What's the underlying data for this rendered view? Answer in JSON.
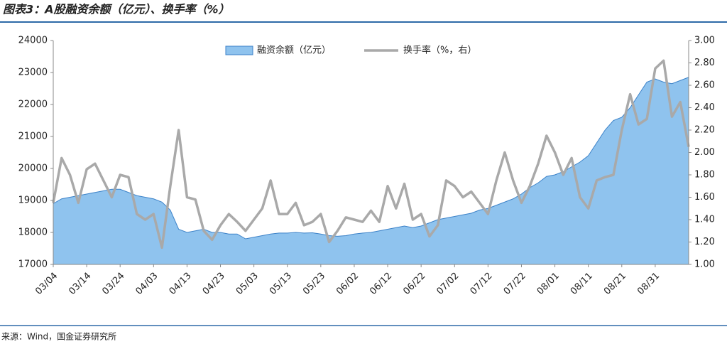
{
  "chart_data": {
    "type": "area_line",
    "title": "图表3：A股融资余额（亿元）、换手率（%）",
    "source": "来源：Wind，国金证券研究所",
    "categories": [
      "03/04",
      null,
      null,
      null,
      "03/14",
      null,
      null,
      null,
      "03/24",
      null,
      null,
      null,
      "04/03",
      null,
      null,
      null,
      "04/13",
      null,
      null,
      null,
      "04/23",
      null,
      null,
      null,
      "05/03",
      null,
      null,
      null,
      "05/13",
      null,
      null,
      null,
      "05/23",
      null,
      null,
      null,
      "06/02",
      null,
      null,
      null,
      "06/12",
      null,
      null,
      null,
      "06/22",
      null,
      null,
      null,
      "07/02",
      null,
      null,
      null,
      "07/12",
      null,
      null,
      null,
      "07/22",
      null,
      null,
      null,
      "08/01",
      null,
      null,
      null,
      "08/11",
      null,
      null,
      null,
      "08/21",
      null,
      null,
      null,
      "08/31",
      null,
      null,
      null,
      null
    ],
    "series": [
      {
        "name": "融资余额（亿元）",
        "type": "area",
        "color": "#8fc3ee",
        "edge": "#3c82c8",
        "values": [
          18900,
          19050,
          19100,
          19150,
          19200,
          19250,
          19300,
          19350,
          19350,
          19250,
          19150,
          19100,
          19050,
          18950,
          18700,
          18100,
          18000,
          18050,
          18100,
          18000,
          18000,
          17950,
          17950,
          17800,
          17850,
          17900,
          17950,
          17980,
          17980,
          18000,
          17980,
          17990,
          17950,
          17900,
          17880,
          17900,
          17950,
          17980,
          18000,
          18050,
          18100,
          18150,
          18200,
          18150,
          18200,
          18300,
          18400,
          18450,
          18500,
          18550,
          18600,
          18700,
          18750,
          18850,
          18950,
          19050,
          19200,
          19400,
          19550,
          19750,
          19800,
          19900,
          20050,
          20200,
          20400,
          20800,
          21200,
          21500,
          21600,
          21900,
          22300,
          22700,
          22800,
          22700,
          22650,
          22750,
          22850
        ]
      },
      {
        "name": "换手率（%，右）",
        "type": "line",
        "axis": "y2",
        "color": "#a9a9a9",
        "values": [
          1.55,
          1.95,
          1.8,
          1.55,
          1.85,
          1.9,
          1.75,
          1.6,
          1.8,
          1.78,
          1.45,
          1.4,
          1.45,
          1.15,
          1.7,
          2.2,
          1.6,
          1.58,
          1.3,
          1.22,
          1.35,
          1.45,
          1.38,
          1.3,
          1.4,
          1.5,
          1.75,
          1.45,
          1.45,
          1.55,
          1.35,
          1.38,
          1.45,
          1.2,
          1.3,
          1.42,
          1.4,
          1.38,
          1.48,
          1.38,
          1.7,
          1.5,
          1.72,
          1.4,
          1.45,
          1.25,
          1.35,
          1.75,
          1.7,
          1.6,
          1.65,
          1.55,
          1.45,
          1.75,
          2.0,
          1.75,
          1.55,
          1.7,
          1.9,
          2.15,
          2.0,
          1.8,
          1.95,
          1.6,
          1.5,
          1.75,
          1.78,
          1.8,
          2.2,
          2.52,
          2.25,
          2.3,
          2.75,
          2.82,
          2.32,
          2.45,
          2.05
        ]
      }
    ],
    "ylim": [
      17000,
      24000
    ],
    "yticks": [
      17000,
      18000,
      19000,
      20000,
      21000,
      22000,
      23000,
      24000
    ],
    "y2lim": [
      1,
      3
    ],
    "y2ticks": [
      {
        "value": 1,
        "label": "1.00"
      },
      {
        "value": 1.2,
        "label": "1.20"
      },
      {
        "value": 1.4,
        "label": "1.40"
      },
      {
        "value": 1.6,
        "label": "1.60"
      },
      {
        "value": 1.8,
        "label": "1.80"
      },
      {
        "value": 2,
        "label": "2.00"
      },
      {
        "value": 2.2,
        "label": "2.20"
      },
      {
        "value": 2.4,
        "label": "2.40"
      },
      {
        "value": 2.6,
        "label": "2.60"
      },
      {
        "value": 2.8,
        "label": "2.80"
      },
      {
        "value": 3,
        "label": "3.00"
      }
    ]
  }
}
